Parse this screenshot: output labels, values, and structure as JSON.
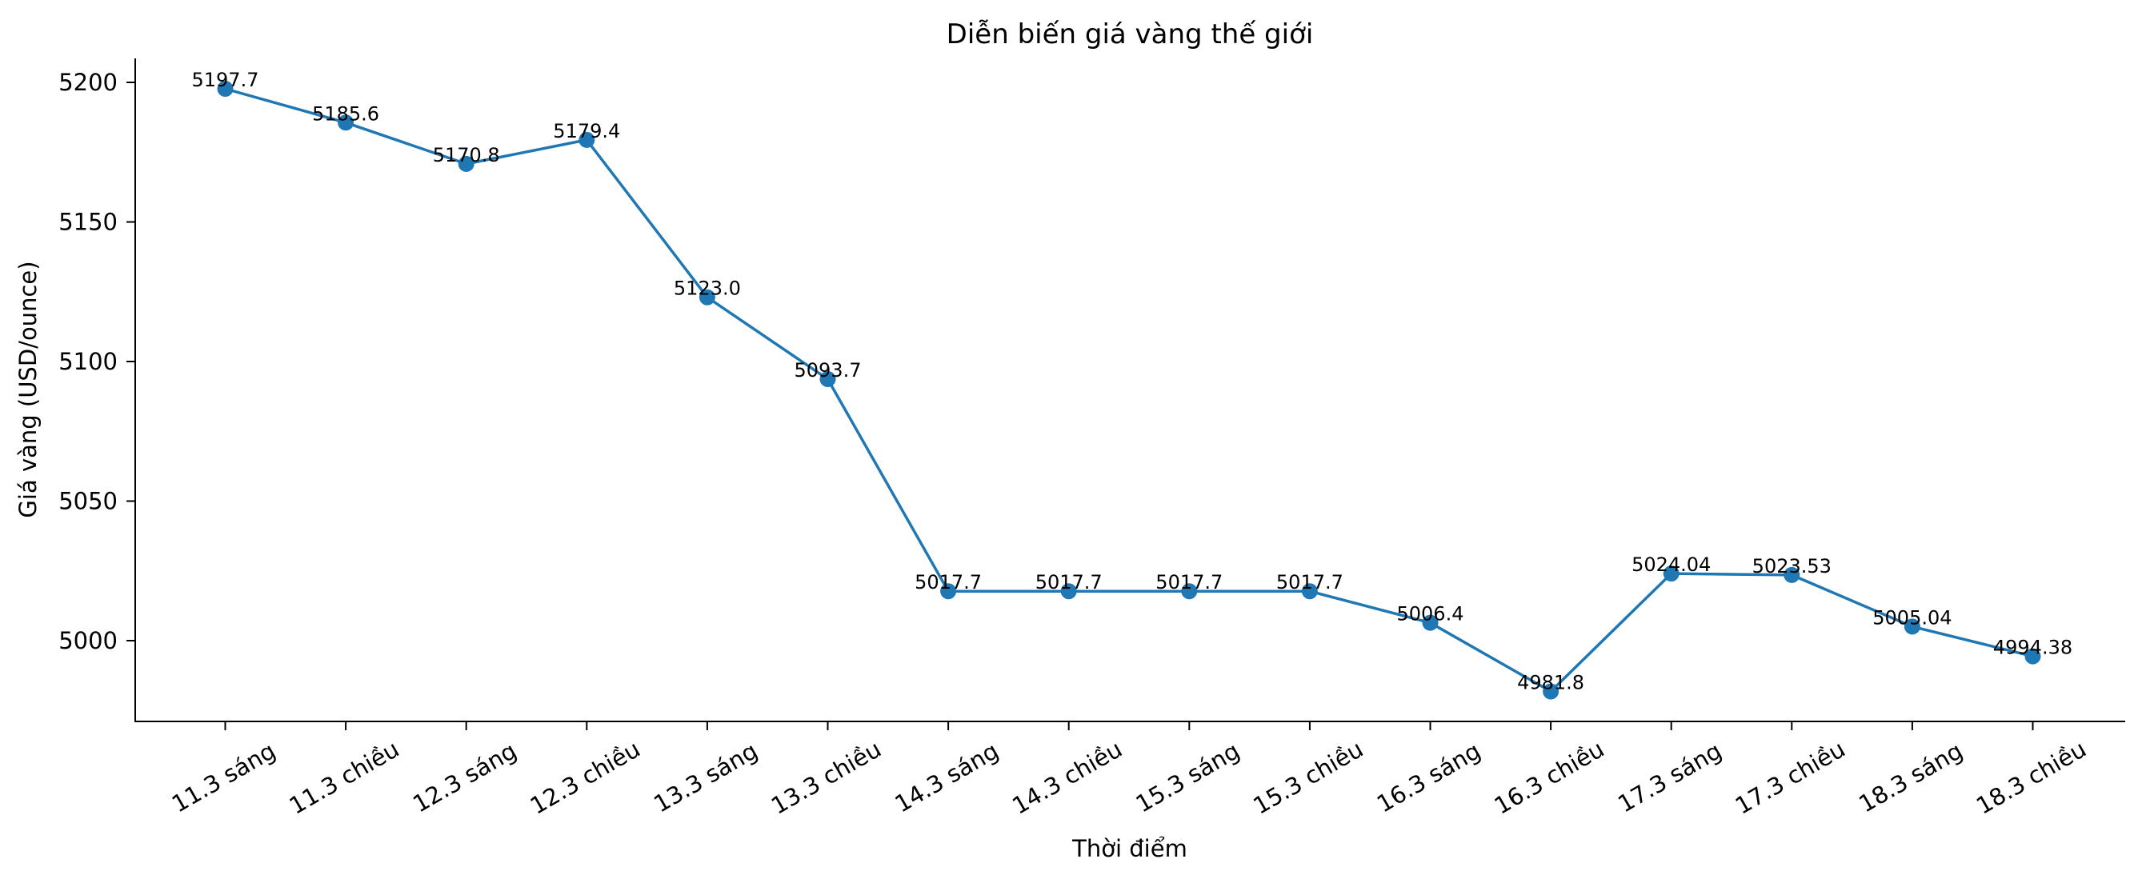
{
  "chart_data": {
    "type": "line",
    "title": "Diễn biến giá vàng thế giới",
    "xlabel": "Thời điểm",
    "ylabel": "Giá vàng (USD/ounce)",
    "categories": [
      "11.3 sáng",
      "11.3 chiều",
      "12.3 sáng",
      "12.3 chiều",
      "13.3 sáng",
      "13.3 chiều",
      "14.3 sáng",
      "14.3 chiều",
      "15.3 sáng",
      "15.3 chiều",
      "16.3 sáng",
      "16.3 chiều",
      "17.3 sáng",
      "17.3 chiều",
      "18.3 sáng",
      "18.3 chiều"
    ],
    "series": [
      {
        "name": "Giá vàng",
        "color": "#1f77b4",
        "marker": "circle",
        "values": [
          5197.7,
          5185.6,
          5170.8,
          5179.4,
          5123.0,
          5093.7,
          5017.7,
          5017.7,
          5017.7,
          5017.7,
          5006.4,
          4981.8,
          5024.04,
          5023.53,
          5005.04,
          4994.38
        ],
        "data_labels": [
          "5197.7",
          "5185.6",
          "5170.8",
          "5179.4",
          "5123.0",
          "5093.7",
          "5017.7",
          "5017.7",
          "5017.7",
          "5017.7",
          "5006.4",
          "4981.8",
          "5024.04",
          "5023.53",
          "5005.04",
          "4994.38"
        ]
      }
    ],
    "yticks": [
      5000,
      5050,
      5100,
      5150,
      5200
    ],
    "ytick_labels": [
      "5000",
      "5050",
      "5100",
      "5150",
      "5200"
    ],
    "ylim": [
      4971.7,
      5208.5
    ],
    "xtick_rotation": 30,
    "grid": false,
    "legend": null,
    "spines": {
      "top": false,
      "right": false,
      "left": true,
      "bottom": true
    }
  }
}
